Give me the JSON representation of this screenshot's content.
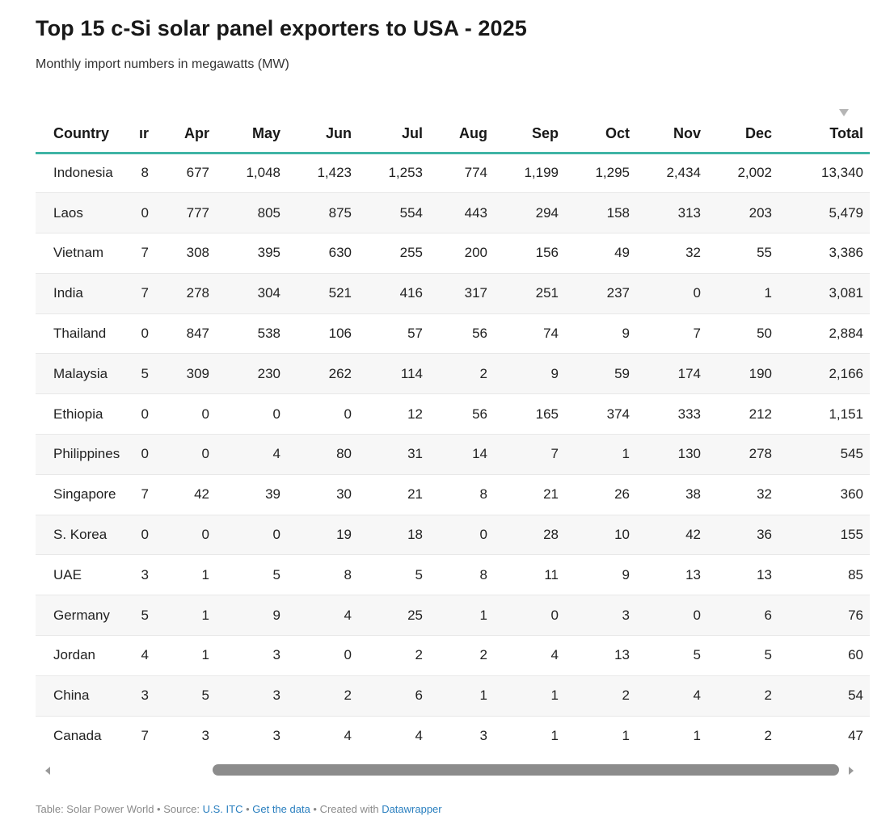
{
  "header": {
    "title": "Top 15 c-Si solar panel exporters to USA - 2025",
    "subtitle": "Monthly import numbers in megawatts (MW)"
  },
  "chart_data": {
    "type": "table",
    "title": "Top 15 c-Si solar panel exporters to USA - 2025",
    "subtitle": "Monthly import numbers in megawatts (MW)",
    "sorted_by": "Total",
    "columns": [
      "Country",
      "ır",
      "Apr",
      "May",
      "Jun",
      "Jul",
      "Aug",
      "Sep",
      "Oct",
      "Nov",
      "Dec",
      "Total"
    ],
    "rows": [
      [
        "Indonesia",
        "8",
        "677",
        "1,048",
        "1,423",
        "1,253",
        "774",
        "1,199",
        "1,295",
        "2,434",
        "2,002",
        "13,340"
      ],
      [
        "Laos",
        "0",
        "777",
        "805",
        "875",
        "554",
        "443",
        "294",
        "158",
        "313",
        "203",
        "5,479"
      ],
      [
        "Vietnam",
        "7",
        "308",
        "395",
        "630",
        "255",
        "200",
        "156",
        "49",
        "32",
        "55",
        "3,386"
      ],
      [
        "India",
        "7",
        "278",
        "304",
        "521",
        "416",
        "317",
        "251",
        "237",
        "0",
        "1",
        "3,081"
      ],
      [
        "Thailand",
        "0",
        "847",
        "538",
        "106",
        "57",
        "56",
        "74",
        "9",
        "7",
        "50",
        "2,884"
      ],
      [
        "Malaysia",
        "5",
        "309",
        "230",
        "262",
        "114",
        "2",
        "9",
        "59",
        "174",
        "190",
        "2,166"
      ],
      [
        "Ethiopia",
        "0",
        "0",
        "0",
        "0",
        "12",
        "56",
        "165",
        "374",
        "333",
        "212",
        "1,151"
      ],
      [
        "Philippines",
        "0",
        "0",
        "4",
        "80",
        "31",
        "14",
        "7",
        "1",
        "130",
        "278",
        "545"
      ],
      [
        "Singapore",
        "7",
        "42",
        "39",
        "30",
        "21",
        "8",
        "21",
        "26",
        "38",
        "32",
        "360"
      ],
      [
        "S. Korea",
        "0",
        "0",
        "0",
        "19",
        "18",
        "0",
        "28",
        "10",
        "42",
        "36",
        "155"
      ],
      [
        "UAE",
        "3",
        "1",
        "5",
        "8",
        "5",
        "8",
        "11",
        "9",
        "13",
        "13",
        "85"
      ],
      [
        "Germany",
        "5",
        "1",
        "9",
        "4",
        "25",
        "1",
        "0",
        "3",
        "0",
        "6",
        "76"
      ],
      [
        "Jordan",
        "4",
        "1",
        "3",
        "0",
        "2",
        "2",
        "4",
        "13",
        "5",
        "5",
        "60"
      ],
      [
        "China",
        "3",
        "5",
        "3",
        "2",
        "6",
        "1",
        "1",
        "2",
        "4",
        "2",
        "54"
      ],
      [
        "Canada",
        "7",
        "3",
        "3",
        "4",
        "4",
        "3",
        "1",
        "1",
        "1",
        "2",
        "47"
      ]
    ]
  },
  "footer": {
    "prefix": "Table: Solar Power World • Source: ",
    "source_link": "U.S. ITC",
    "sep1": " • ",
    "data_link": "Get the data",
    "sep2": " • Created with ",
    "datawrapper_link": "Datawrapper"
  },
  "colors": {
    "accent": "#3fb4a5",
    "link": "#2a7fbf",
    "stripe": "#f7f7f7"
  }
}
